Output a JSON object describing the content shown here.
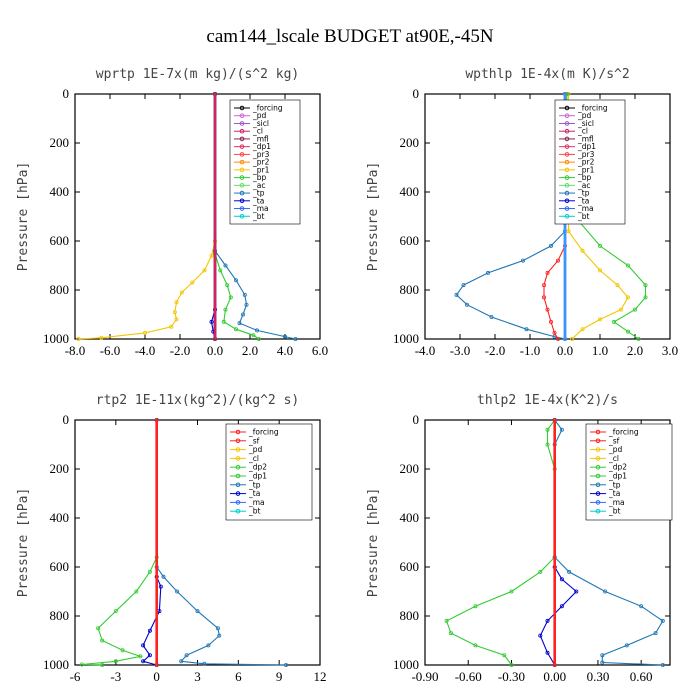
{
  "title": "cam144_lscale  BUDGET at90E,-45N",
  "chart_data": [
    {
      "type": "line",
      "title": "wprtp  1E-7x(m kg)/(s^2 kg)",
      "ylabel": "Pressure [hPa]",
      "xlim": [
        -8,
        6
      ],
      "ylim": [
        1000,
        0
      ],
      "xticks": [
        "-8.0",
        "-6.0",
        "-4.0",
        "-2.0",
        "0.0",
        "2.0",
        "4.0",
        "6.0"
      ],
      "yticks": [
        "0",
        "200",
        "400",
        "600",
        "800",
        "1000"
      ],
      "legend": [
        "_forcing",
        "_pd",
        "_sicl",
        "_cl",
        "_mfl",
        "_dp1",
        "_pr3",
        "_pr2",
        "_pr1",
        "_bp",
        "_ac",
        "_tp",
        "_ta",
        "_ma",
        "_bt"
      ],
      "series": [
        {
          "name": "_pr1",
          "color": "#f5c400",
          "points": [
            [
              0,
              0
            ],
            [
              0,
              600
            ],
            [
              -0.2,
              660
            ],
            [
              -0.6,
              720
            ],
            [
              -1.3,
              770
            ],
            [
              -1.9,
              810
            ],
            [
              -2.2,
              850
            ],
            [
              -2.3,
              890
            ],
            [
              -2.2,
              920
            ],
            [
              -2.5,
              950
            ],
            [
              -4.0,
              975
            ],
            [
              -6.5,
              995
            ],
            [
              -7.8,
              1000
            ]
          ]
        },
        {
          "name": "_ac",
          "color": "#33cc33",
          "points": [
            [
              0,
              0
            ],
            [
              0,
              650
            ],
            [
              0.3,
              720
            ],
            [
              0.7,
              780
            ],
            [
              0.9,
              830
            ],
            [
              0.6,
              880
            ],
            [
              0.5,
              930
            ],
            [
              1.2,
              960
            ],
            [
              2.2,
              985
            ],
            [
              2.5,
              1000
            ]
          ]
        },
        {
          "name": "_tp",
          "color": "#1f77b4",
          "points": [
            [
              0,
              0
            ],
            [
              0,
              640
            ],
            [
              0.6,
              700
            ],
            [
              1.2,
              760
            ],
            [
              1.7,
              820
            ],
            [
              1.8,
              860
            ],
            [
              1.6,
              900
            ],
            [
              1.4,
              935
            ],
            [
              2.4,
              965
            ],
            [
              4.0,
              990
            ],
            [
              4.6,
              1000
            ]
          ]
        },
        {
          "name": "_ta",
          "color": "#0000cc",
          "points": [
            [
              0,
              0
            ],
            [
              0,
              880
            ],
            [
              -0.2,
              930
            ],
            [
              -0.1,
              970
            ],
            [
              0,
              1000
            ]
          ]
        },
        {
          "name": "_forcing",
          "color": "#000000",
          "points": [
            [
              0,
              0
            ],
            [
              0,
              1000
            ]
          ]
        },
        {
          "name": "_bt",
          "color": "#cc2266",
          "points": [
            [
              0,
              0
            ],
            [
              0,
              1000
            ]
          ]
        }
      ]
    },
    {
      "type": "line",
      "title": "wpthlp  1E-4x(m K)/s^2",
      "ylabel": "Pressure [hPa]",
      "xlim": [
        -4,
        3
      ],
      "ylim": [
        1000,
        0
      ],
      "xticks": [
        "-4.0",
        "-3.0",
        "-2.0",
        "-1.0",
        "0.0",
        "1.0",
        "2.0",
        "3.0"
      ],
      "yticks": [
        "0",
        "200",
        "400",
        "600",
        "800",
        "1000"
      ],
      "legend": [
        "_forcing",
        "_pd",
        "_sicl",
        "_cl",
        "_mfl",
        "_dp1",
        "_pr3",
        "_pr2",
        "_pr1",
        "_bp",
        "_ac",
        "_tp",
        "_ta",
        "_ma",
        "_bt"
      ],
      "series": [
        {
          "name": "_tp",
          "color": "#1f77b4",
          "points": [
            [
              0,
              0
            ],
            [
              0,
              560
            ],
            [
              -0.4,
              620
            ],
            [
              -1.2,
              680
            ],
            [
              -2.2,
              730
            ],
            [
              -2.9,
              780
            ],
            [
              -3.1,
              820
            ],
            [
              -2.8,
              860
            ],
            [
              -2.1,
              910
            ],
            [
              -1.1,
              960
            ],
            [
              -0.3,
              990
            ],
            [
              0,
              1000
            ]
          ]
        },
        {
          "name": "_dp1",
          "color": "#ff2020",
          "points": [
            [
              0,
              0
            ],
            [
              0,
              620
            ],
            [
              -0.2,
              680
            ],
            [
              -0.5,
              730
            ],
            [
              -0.6,
              780
            ],
            [
              -0.6,
              830
            ],
            [
              -0.5,
              880
            ],
            [
              -0.4,
              930
            ],
            [
              -0.3,
              975
            ],
            [
              -0.2,
              1000
            ]
          ]
        },
        {
          "name": "_pr1",
          "color": "#f5c400",
          "points": [
            [
              0.1,
              0
            ],
            [
              0.1,
              560
            ],
            [
              0.5,
              640
            ],
            [
              1.0,
              720
            ],
            [
              1.5,
              780
            ],
            [
              1.8,
              830
            ],
            [
              1.6,
              880
            ],
            [
              1.0,
              920
            ],
            [
              0.5,
              960
            ],
            [
              0.2,
              1000
            ]
          ]
        },
        {
          "name": "_ac",
          "color": "#33cc33",
          "points": [
            [
              0.05,
              0
            ],
            [
              0.1,
              400
            ],
            [
              0.4,
              520
            ],
            [
              1.0,
              620
            ],
            [
              1.8,
              700
            ],
            [
              2.3,
              780
            ],
            [
              2.3,
              830
            ],
            [
              2.0,
              880
            ],
            [
              1.4,
              930
            ],
            [
              1.8,
              970
            ],
            [
              2.1,
              1000
            ]
          ]
        },
        {
          "name": "_forcing",
          "color": "#aa66aa",
          "points": [
            [
              0,
              0
            ],
            [
              0,
              1000
            ]
          ]
        },
        {
          "name": "_bt",
          "color": "#3399ff",
          "points": [
            [
              0,
              0
            ],
            [
              0,
              1000
            ]
          ]
        }
      ]
    },
    {
      "type": "line",
      "title": "rtp2  1E-11x(kg^2)/(kg^2 s)",
      "ylabel": "Pressure [hPa]",
      "xlim": [
        -6,
        12
      ],
      "ylim": [
        1000,
        0
      ],
      "xticks": [
        "-6",
        "-3",
        "0",
        "3",
        "6",
        "9",
        "12"
      ],
      "yticks": [
        "0",
        "200",
        "400",
        "600",
        "800",
        "1000"
      ],
      "legend": [
        "_forcing",
        "_sf",
        "_pd",
        "_cl",
        "_dp2",
        "_dp1",
        "_tp",
        "_ta",
        "_ma",
        "_bt"
      ],
      "series": [
        {
          "name": "_dp1",
          "color": "#33cc33",
          "points": [
            [
              0,
              0
            ],
            [
              0,
              560
            ],
            [
              -0.5,
              620
            ],
            [
              -1.5,
              700
            ],
            [
              -3.0,
              780
            ],
            [
              -4.3,
              850
            ],
            [
              -4.0,
              900
            ],
            [
              -2.5,
              940
            ],
            [
              -1.2,
              965
            ],
            [
              -3.0,
              985
            ],
            [
              -5.5,
              998
            ],
            [
              -4.0,
              1000
            ]
          ]
        },
        {
          "name": "_tp",
          "color": "#1f77b4",
          "points": [
            [
              0,
              0
            ],
            [
              0,
              600
            ],
            [
              0.5,
              640
            ],
            [
              1.5,
              700
            ],
            [
              3.0,
              780
            ],
            [
              4.5,
              850
            ],
            [
              4.6,
              880
            ],
            [
              3.8,
              920
            ],
            [
              2.2,
              960
            ],
            [
              1.8,
              985
            ],
            [
              3.5,
              995
            ],
            [
              9.5,
              1000
            ]
          ]
        },
        {
          "name": "_ta",
          "color": "#0000cc",
          "points": [
            [
              0,
              0
            ],
            [
              0,
              640
            ],
            [
              0.3,
              680
            ],
            [
              0.2,
              780
            ],
            [
              -0.5,
              860
            ],
            [
              -1.0,
              920
            ],
            [
              -0.5,
              960
            ],
            [
              -1.0,
              985
            ],
            [
              0,
              1000
            ]
          ]
        },
        {
          "name": "_forcing",
          "color": "#ff2020",
          "points": [
            [
              0,
              0
            ],
            [
              0,
              1000
            ]
          ]
        }
      ]
    },
    {
      "type": "line",
      "title": "thlp2  1E-4x(K^2)/s",
      "ylabel": "Pressure [hPa]",
      "xlim": [
        -0.9,
        0.8
      ],
      "ylim": [
        1000,
        0
      ],
      "xticks": [
        "-0.90",
        "-0.60",
        "-0.30",
        "0.00",
        "0.30",
        "0.60"
      ],
      "yticks": [
        "0",
        "200",
        "400",
        "600",
        "800",
        "1000"
      ],
      "legend": [
        "_forcing",
        "_sf",
        "_pd",
        "_cl",
        "_dp2",
        "_dp1",
        "_tp",
        "_ta",
        "_ma",
        "_bt"
      ],
      "series": [
        {
          "name": "_dp1",
          "color": "#33cc33",
          "points": [
            [
              0,
              0
            ],
            [
              -0.05,
              40
            ],
            [
              -0.05,
              100
            ],
            [
              0,
              200
            ],
            [
              0,
              560
            ],
            [
              -0.1,
              620
            ],
            [
              -0.3,
              700
            ],
            [
              -0.55,
              760
            ],
            [
              -0.75,
              820
            ],
            [
              -0.72,
              870
            ],
            [
              -0.55,
              920
            ],
            [
              -0.35,
              960
            ],
            [
              -0.3,
              1000
            ]
          ]
        },
        {
          "name": "_tp",
          "color": "#1f77b4",
          "points": [
            [
              0,
              0
            ],
            [
              0.05,
              40
            ],
            [
              0,
              100
            ],
            [
              0,
              560
            ],
            [
              0.1,
              620
            ],
            [
              0.35,
              700
            ],
            [
              0.6,
              760
            ],
            [
              0.75,
              820
            ],
            [
              0.7,
              870
            ],
            [
              0.5,
              920
            ],
            [
              0.33,
              960
            ],
            [
              0.33,
              990
            ],
            [
              0.75,
              1000
            ]
          ]
        },
        {
          "name": "_ta",
          "color": "#0000cc",
          "points": [
            [
              0,
              0
            ],
            [
              0,
              600
            ],
            [
              0.05,
              650
            ],
            [
              0.15,
              700
            ],
            [
              0.05,
              760
            ],
            [
              -0.05,
              820
            ],
            [
              -0.1,
              880
            ],
            [
              -0.05,
              950
            ],
            [
              0,
              1000
            ]
          ]
        },
        {
          "name": "_forcing",
          "color": "#ff2020",
          "points": [
            [
              0,
              0
            ],
            [
              0,
              1000
            ]
          ]
        }
      ]
    }
  ]
}
